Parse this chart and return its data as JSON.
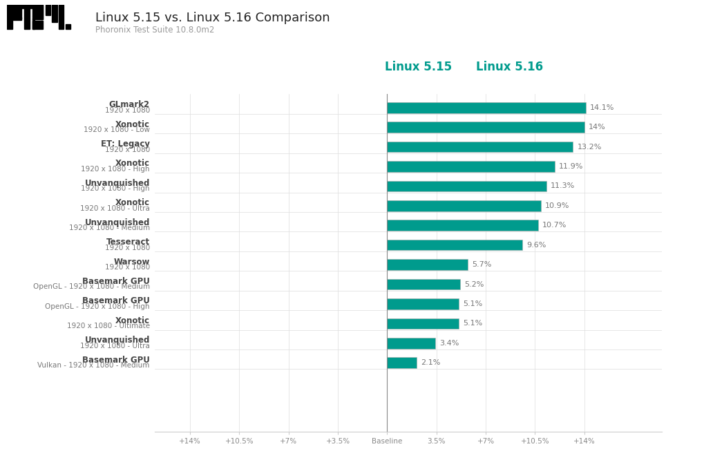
{
  "title": "Linux 5.15 vs. Linux 5.16 Comparison",
  "subtitle": "Phoronix Test Suite 10.8.0m2",
  "bar_color": "#009B8D",
  "background_color": "#ffffff",
  "legend_color": "#009B8D",
  "legend_labels": [
    "Linux 5.15",
    "Linux 5.16"
  ],
  "categories_line1": [
    "GLmark2",
    "Xonotic",
    "ET: Legacy",
    "Xonotic",
    "Unvanquished",
    "Xonotic",
    "Unvanquished",
    "Tesseract",
    "Warsow",
    "Basemark GPU",
    "Basemark GPU",
    "Xonotic",
    "Unvanquished",
    "Basemark GPU"
  ],
  "categories_line2": [
    "1920 x 1080",
    "1920 x 1080 - Low",
    "1920 x 1080",
    "1920 x 1080 - High",
    "1920 x 1080 - High",
    "1920 x 1080 - Ultra",
    "1920 x 1080 - Medium",
    "1920 x 1080",
    "1920 x 1080",
    "OpenGL - 1920 x 1080 - Medium",
    "OpenGL - 1920 x 1080 - High",
    "1920 x 1080 - Ultimate",
    "1920 x 1080 - Ultra",
    "Vulkan - 1920 x 1080 - Medium"
  ],
  "values": [
    14.1,
    14.0,
    13.2,
    11.9,
    11.3,
    10.9,
    10.7,
    9.6,
    5.7,
    5.2,
    5.1,
    5.1,
    3.4,
    2.1
  ],
  "labels": [
    "14.1%",
    "14%",
    "13.2%",
    "11.9%",
    "11.3%",
    "10.9%",
    "10.7%",
    "9.6%",
    "5.7%",
    "5.2%",
    "5.1%",
    "5.1%",
    "3.4%",
    "2.1%"
  ],
  "xticks": [
    -14,
    -10.5,
    -7,
    -3.5,
    0,
    3.5,
    7,
    10.5,
    14
  ],
  "xtick_labels": [
    "+14%",
    "+10.5%",
    "+7%",
    "+3.5%",
    "Baseline",
    "3.5%",
    "+7%",
    "+10.5%",
    "+14%"
  ],
  "xlim": [
    -16.5,
    19.5
  ],
  "bar_height": 0.55,
  "figsize": [
    10.19,
    6.79
  ],
  "dpi": 100,
  "label_color": "#777777",
  "title_color": "#222222",
  "subtitle_color": "#999999"
}
